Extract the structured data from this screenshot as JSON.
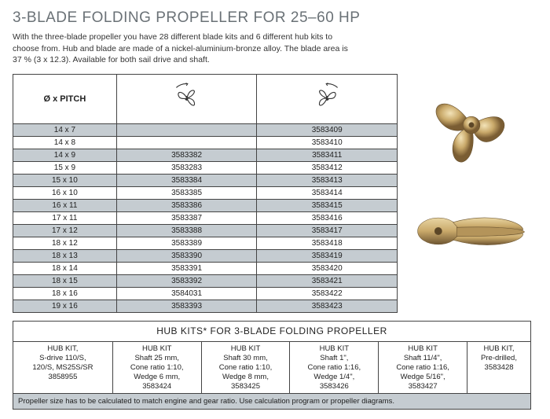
{
  "title": "3-BLADE FOLDING PROPELLER FOR 25–60 HP",
  "description": "With the three-blade propeller you have 28 different blade kits and 6 different hub kits to choose from. Hub and blade are made of a nickel-aluminium-bronze alloy. The blade area is 37 % (3 x 12.3). Available for both sail drive and shaft.",
  "pitch_header": "Ø x PITCH",
  "pitch_rows": [
    {
      "pitch": "14 x 7",
      "ccw": "",
      "cw": "3583409",
      "shade": true
    },
    {
      "pitch": "14 x 8",
      "ccw": "",
      "cw": "3583410",
      "shade": false
    },
    {
      "pitch": "14 x 9",
      "ccw": "3583382",
      "cw": "3583411",
      "shade": true
    },
    {
      "pitch": "15 x 9",
      "ccw": "3583283",
      "cw": "3583412",
      "shade": false
    },
    {
      "pitch": "15 x 10",
      "ccw": "3583384",
      "cw": "3583413",
      "shade": true
    },
    {
      "pitch": "16 x 10",
      "ccw": "3583385",
      "cw": "3583414",
      "shade": false
    },
    {
      "pitch": "16 x 11",
      "ccw": "3583386",
      "cw": "3583415",
      "shade": true
    },
    {
      "pitch": "17 x 11",
      "ccw": "3583387",
      "cw": "3583416",
      "shade": false
    },
    {
      "pitch": "17 x 12",
      "ccw": "3583388",
      "cw": "3583417",
      "shade": true
    },
    {
      "pitch": "18 x 12",
      "ccw": "3583389",
      "cw": "3583418",
      "shade": false
    },
    {
      "pitch": "18 x 13",
      "ccw": "3583390",
      "cw": "3583419",
      "shade": true
    },
    {
      "pitch": "18 x 14",
      "ccw": "3583391",
      "cw": "3583420",
      "shade": false
    },
    {
      "pitch": "18 x 15",
      "ccw": "3583392",
      "cw": "3583421",
      "shade": true
    },
    {
      "pitch": "18 x 16",
      "ccw": "3584031",
      "cw": "3583422",
      "shade": false
    },
    {
      "pitch": "19 x 16",
      "ccw": "3583393",
      "cw": "3583423",
      "shade": true
    }
  ],
  "hub_title": "HUB KITS* FOR 3-BLADE FOLDING PROPELLER",
  "hub_kits": [
    {
      "l1": "HUB KIT,",
      "l2": "S-drive 110/S,",
      "l3": "120/S, MS25S/SR",
      "l4": "3858955"
    },
    {
      "l1": "HUB KIT",
      "l2": "Shaft 25 mm,",
      "l3": "Cone ratio 1:10,",
      "l4": "Wedge 6 mm,",
      "l5": "3583424"
    },
    {
      "l1": "HUB KIT",
      "l2": "Shaft 30 mm,",
      "l3": "Cone ratio 1:10,",
      "l4": "Wedge 8 mm,",
      "l5": "3583425"
    },
    {
      "l1": "HUB KIT",
      "l2": "Shaft 1\",",
      "l3": "Cone ratio 1:16,",
      "l4": "Wedge 1/4\",",
      "l5": "3583426"
    },
    {
      "l1": "HUB KIT",
      "l2": "Shaft 11/4\",",
      "l3": "Cone ratio 1:16,",
      "l4": "Wedge 5/16\",",
      "l5": "3583427"
    },
    {
      "l1": "HUB KIT,",
      "l2": "Pre-drilled,",
      "l3": "3583428",
      "l4": ""
    }
  ],
  "note": "Propeller size has to be calculated to match engine and gear ratio. Use calculation program or propeller diagrams.",
  "colors": {
    "shade": "#c5ccd1",
    "title": "#6a7176",
    "bronze1": "#c9a96a",
    "bronze2": "#8b6f3e"
  }
}
